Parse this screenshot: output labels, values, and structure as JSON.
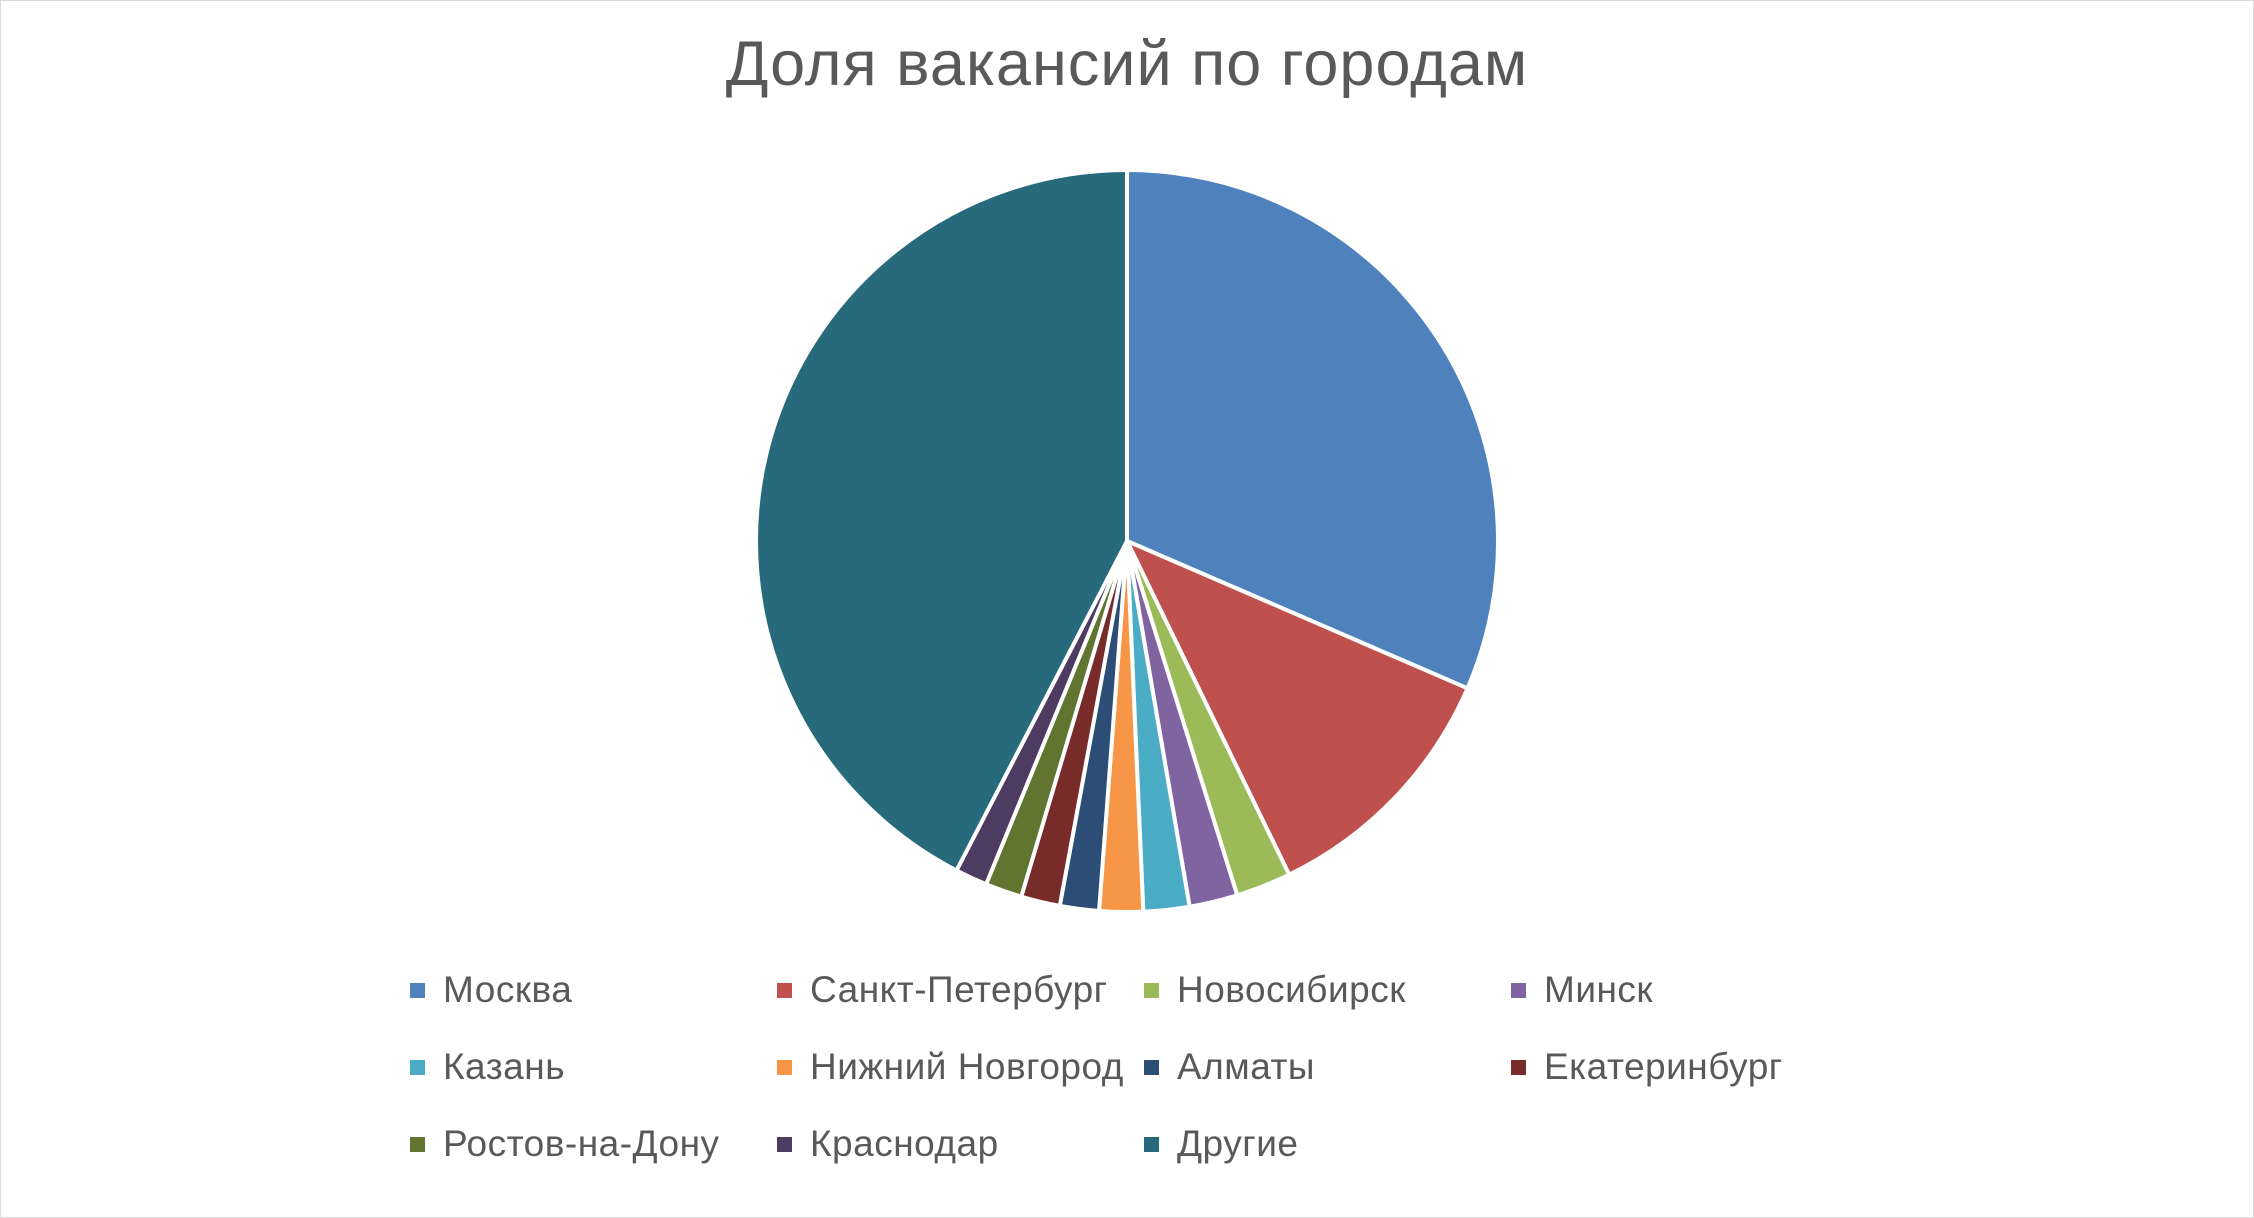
{
  "chart_data": {
    "type": "pie",
    "title": "Доля вакансий по городам",
    "legend_position": "bottom",
    "series": [
      {
        "categories": [
          "Москва",
          "Санкт-Петербург",
          "Новосибирск",
          "Минск",
          "Казань",
          "Нижний Новгород",
          "Алматы",
          "Екатеринбург",
          "Ростов-на-Дону",
          "Краснодар",
          "Другие"
        ],
        "values": [
          31.5,
          11.3,
          2.4,
          2.1,
          2.0,
          1.9,
          1.7,
          1.7,
          1.6,
          1.4,
          42.4
        ],
        "colors": [
          "#4F81BD",
          "#C0504D",
          "#9BBB59",
          "#8064A2",
          "#4BACC6",
          "#F79646",
          "#2C4D75",
          "#772C2A",
          "#5F7530",
          "#4D3B62",
          "#276A7C"
        ]
      }
    ]
  }
}
